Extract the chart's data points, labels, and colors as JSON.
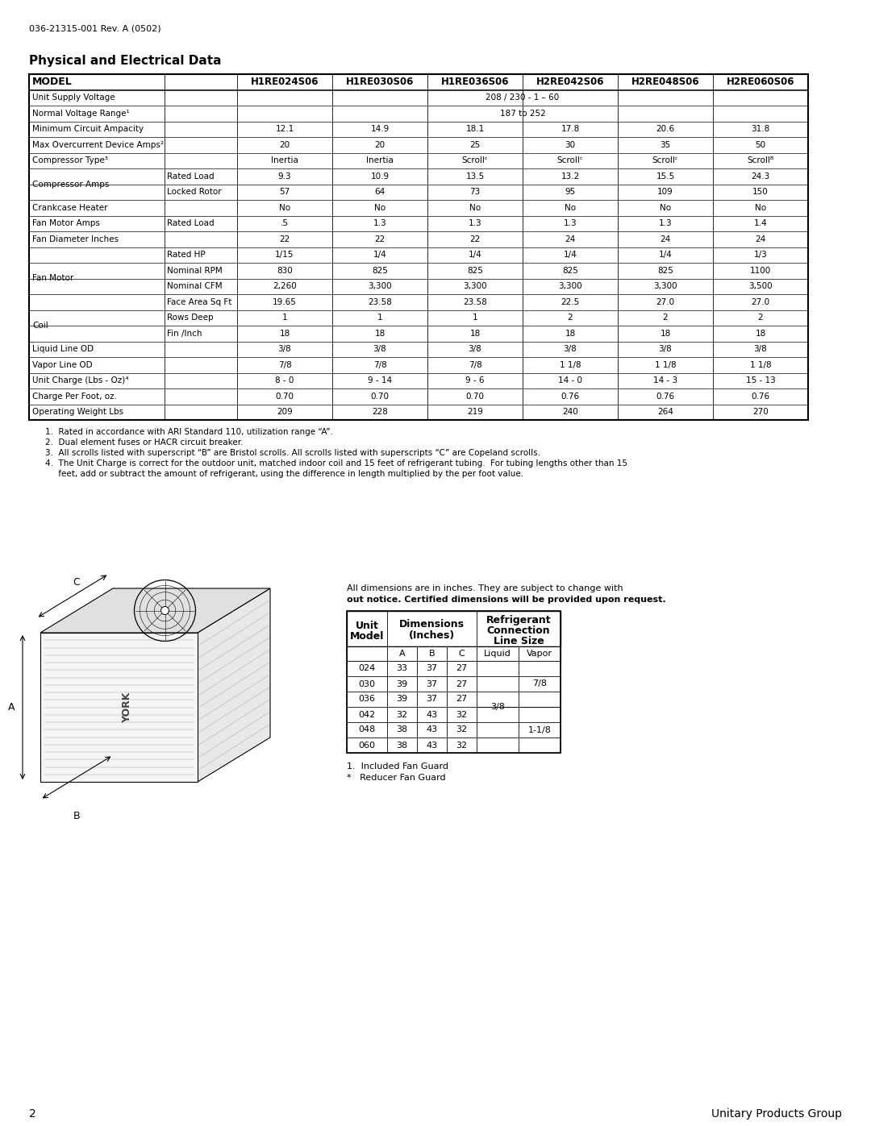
{
  "doc_number": "036-21315-001 Rev. A (0502)",
  "section_title": "Physical and Electrical Data",
  "page_number": "2",
  "footer_text": "Unitary Products Group",
  "main_table_header": [
    "MODEL",
    "",
    "H1RE024S06",
    "H1RE030S06",
    "H1RE036S06",
    "H2RE042S06",
    "H2RE048S06",
    "H2RE060S06"
  ],
  "main_table_rows": [
    [
      "Unit Supply Voltage",
      "",
      "208 / 230 - 1 – 60",
      "",
      "",
      "",
      "",
      ""
    ],
    [
      "Normal Voltage Range¹",
      "",
      "187 to 252",
      "",
      "",
      "",
      "",
      ""
    ],
    [
      "Minimum Circuit Ampacity",
      "",
      "12.1",
      "14.9",
      "18.1",
      "17.8",
      "20.6",
      "31.8"
    ],
    [
      "Max Overcurrent Device Amps²",
      "",
      "20",
      "20",
      "25",
      "30",
      "35",
      "50"
    ],
    [
      "Compressor Type³",
      "",
      "Inertia",
      "Inertia",
      "Scrollᶜ",
      "Scrollᶜ",
      "Scrollᶜ",
      "Scrollᴮ"
    ],
    [
      "Compressor Amps",
      "Rated Load",
      "9.3",
      "10.9",
      "13.5",
      "13.2",
      "15.5",
      "24.3"
    ],
    [
      "",
      "Locked Rotor",
      "57",
      "64",
      "73",
      "95",
      "109",
      "150"
    ],
    [
      "Crankcase Heater",
      "",
      "No",
      "No",
      "No",
      "No",
      "No",
      "No"
    ],
    [
      "Fan Motor Amps",
      "Rated Load",
      ".5",
      "1.3",
      "1.3",
      "1.3",
      "1.3",
      "1.4"
    ],
    [
      "Fan Diameter Inches",
      "",
      "22",
      "22",
      "22",
      "24",
      "24",
      "24"
    ],
    [
      "Fan Motor",
      "Rated HP",
      "1/15",
      "1/4",
      "1/4",
      "1/4",
      "1/4",
      "1/3"
    ],
    [
      "",
      "Nominal RPM",
      "830",
      "825",
      "825",
      "825",
      "825",
      "1100"
    ],
    [
      "",
      "Nominal CFM",
      "2,260",
      "3,300",
      "3,300",
      "3,300",
      "3,300",
      "3,500"
    ],
    [
      "",
      "Face Area Sq Ft",
      "19.65",
      "23.58",
      "23.58",
      "22.5",
      "27.0",
      "27.0"
    ],
    [
      "Coil",
      "Rows Deep",
      "1",
      "1",
      "1",
      "2",
      "2",
      "2"
    ],
    [
      "",
      "Fin /Inch",
      "18",
      "18",
      "18",
      "18",
      "18",
      "18"
    ],
    [
      "Liquid Line OD",
      "",
      "3/8",
      "3/8",
      "3/8",
      "3/8",
      "3/8",
      "3/8"
    ],
    [
      "Vapor Line OD",
      "",
      "7/8",
      "7/8",
      "7/8",
      "1 1/8",
      "1 1/8",
      "1 1/8"
    ],
    [
      "Unit Charge (Lbs - Oz)⁴",
      "",
      "8 - 0",
      "9 - 14",
      "9 - 6",
      "14 - 0",
      "14 - 3",
      "15 - 13"
    ],
    [
      "Charge Per Foot, oz.",
      "",
      "0.70",
      "0.70",
      "0.70",
      "0.76",
      "0.76",
      "0.76"
    ],
    [
      "Operating Weight Lbs",
      "",
      "209",
      "228",
      "219",
      "240",
      "264",
      "270"
    ]
  ],
  "footnotes": [
    "1.  Rated in accordance with ARI Standard 110, utilization range “A”.",
    "2.  Dual element fuses or HACR circuit breaker.",
    "3.  All scrolls listed with superscript “B” are Bristol scrolls. All scrolls listed with superscripts “C” are Copeland scrolls.",
    "4.  The Unit Charge is correct for the outdoor unit, matched indoor coil and 15 feet of refrigerant tubing.  For tubing lengths other than 15",
    "     feet, add or subtract the amount of refrigerant, using the difference in length multiplied by the per foot value."
  ],
  "dim_note_line1": "All dimensions are in inches. They are subject to change with",
  "dim_note_line2": "out notice. Certified dimensions will be provided upon request.",
  "dim_models": [
    "024",
    "030",
    "036",
    "042",
    "048",
    "060"
  ],
  "dim_A": [
    "33",
    "39",
    "39",
    "32",
    "38",
    "38"
  ],
  "dim_B": [
    "37",
    "37",
    "37",
    "43",
    "43",
    "43"
  ],
  "dim_C": [
    "27",
    "27",
    "27",
    "32",
    "32",
    "32"
  ],
  "vapor_value_top": "7/8",
  "vapor_value_bot": "1-1/8",
  "liquid_value": "3/8",
  "dim_footnotes": [
    "1.  Included Fan Guard",
    "*   Reducer Fan Guard"
  ],
  "bg_color": "#ffffff"
}
